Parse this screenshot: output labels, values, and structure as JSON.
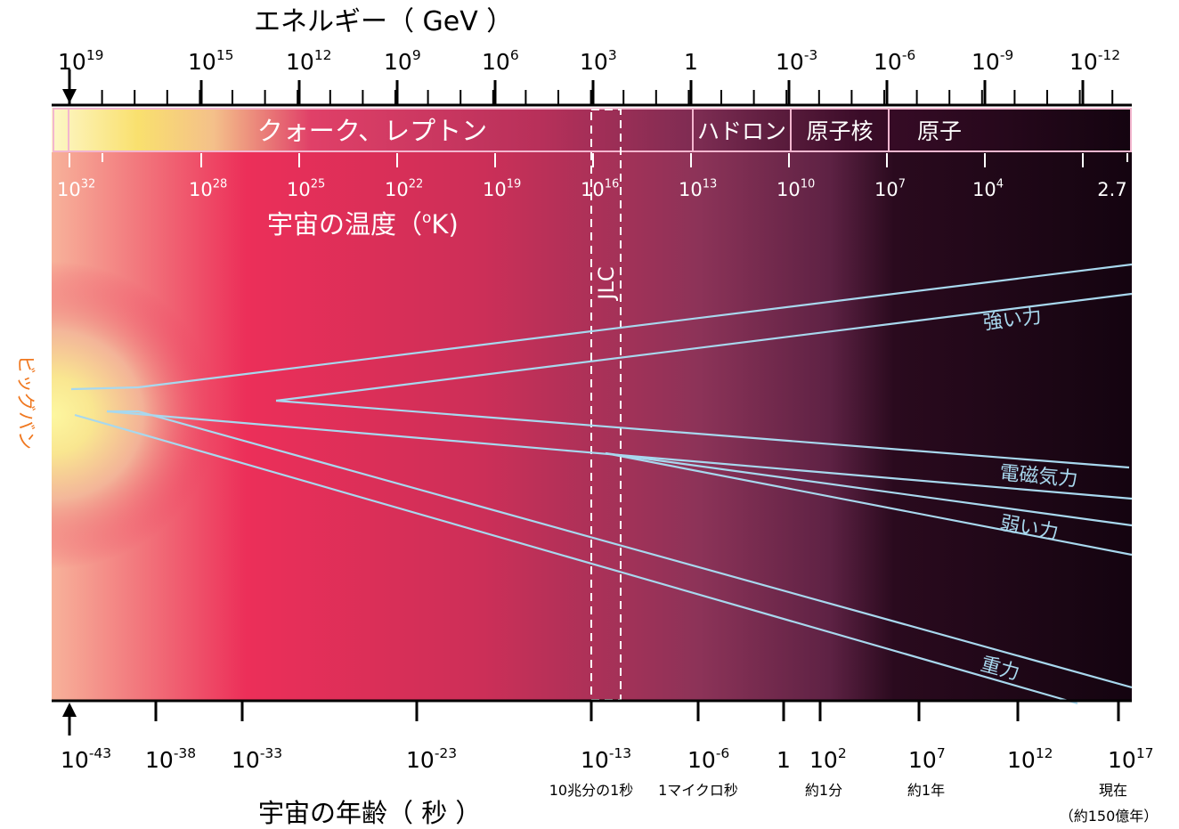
{
  "energy_axis": {
    "title": "エネルギー（ GeV ）",
    "ticks": [
      {
        "base": "10",
        "exp": "19"
      },
      {
        "base": "10",
        "exp": "15"
      },
      {
        "base": "10",
        "exp": "12"
      },
      {
        "base": "10",
        "exp": "9"
      },
      {
        "base": "10",
        "exp": "6"
      },
      {
        "base": "10",
        "exp": "3"
      },
      {
        "base": "1",
        "exp": ""
      },
      {
        "base": "10",
        "exp": "-3"
      },
      {
        "base": "10",
        "exp": "-6"
      },
      {
        "base": "10",
        "exp": "-9"
      },
      {
        "base": "10",
        "exp": "-12"
      }
    ]
  },
  "eras": {
    "quark_lepton": "クォーク、レプトン",
    "hadron": "ハドロン",
    "nucleus": "原子核",
    "atom": "原子"
  },
  "temperature_axis": {
    "title_main": "宇宙の温度（",
    "title_sup": "o",
    "title_end": "K)",
    "ticks": [
      {
        "base": "10",
        "exp": "32"
      },
      {
        "base": "10",
        "exp": "28"
      },
      {
        "base": "10",
        "exp": "25"
      },
      {
        "base": "10",
        "exp": "22"
      },
      {
        "base": "10",
        "exp": "19"
      },
      {
        "base": "10",
        "exp": "16"
      },
      {
        "base": "10",
        "exp": "13"
      },
      {
        "base": "10",
        "exp": "10"
      },
      {
        "base": "10",
        "exp": "7"
      },
      {
        "base": "10",
        "exp": "4"
      },
      {
        "base": "2.7",
        "exp": ""
      }
    ]
  },
  "jlc_label": "JLC",
  "big_bang_label": "ビッグバン",
  "forces": {
    "strong": "強い力",
    "electromagnetic": "電磁気力",
    "weak": "弱い力",
    "gravity": "重力"
  },
  "time_axis": {
    "title": "宇宙の年齢（ 秒 ）",
    "ticks": [
      {
        "base": "10",
        "exp": "-43",
        "note": ""
      },
      {
        "base": "10",
        "exp": "-38",
        "note": ""
      },
      {
        "base": "10",
        "exp": "-33",
        "note": ""
      },
      {
        "base": "10",
        "exp": "-23",
        "note": ""
      },
      {
        "base": "10",
        "exp": "-13",
        "note": "10兆分の1秒"
      },
      {
        "base": "10",
        "exp": "-6",
        "note": "1マイクロ秒"
      },
      {
        "base": "1",
        "exp": "",
        "note": ""
      },
      {
        "base": "10",
        "exp": "2",
        "note": "約1分"
      },
      {
        "base": "10",
        "exp": "7",
        "note": "約1年"
      },
      {
        "base": "10",
        "exp": "12",
        "note": ""
      },
      {
        "base": "10",
        "exp": "17",
        "note": "現在"
      }
    ],
    "now_note2": "（約150億年）"
  },
  "colors": {
    "hot_core": "#fbf6a8",
    "mid": "#ec2b57",
    "cool": "#8a3458",
    "dark": "#140410",
    "force_line": "#a8d8ee",
    "big_bang_text": "#f07820",
    "era_border": "#f3b6cf"
  }
}
